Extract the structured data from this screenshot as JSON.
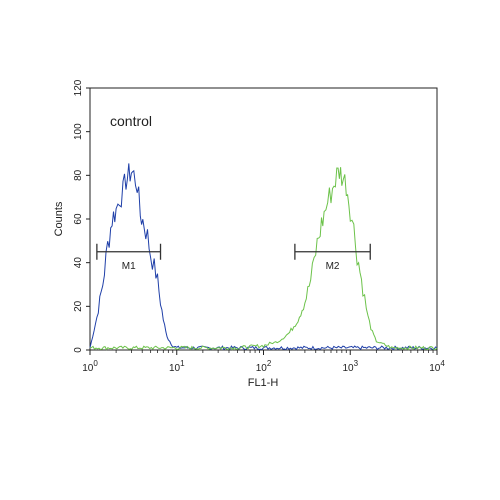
{
  "chart_data": {
    "type": "line",
    "xlabel": "FL1-H",
    "ylabel": "Counts",
    "x_scale": "log",
    "xlim": [
      1,
      10000
    ],
    "ylim": [
      0,
      120
    ],
    "x_ticks": [
      {
        "value": 1,
        "base": "10",
        "exp": "0"
      },
      {
        "value": 10,
        "base": "10",
        "exp": "1"
      },
      {
        "value": 100,
        "base": "10",
        "exp": "2"
      },
      {
        "value": 1000,
        "base": "10",
        "exp": "3"
      },
      {
        "value": 10000,
        "base": "10",
        "exp": "4"
      }
    ],
    "y_ticks": [
      0,
      20,
      40,
      60,
      80,
      100,
      120
    ],
    "annotation": "control",
    "markers": [
      {
        "label": "M1",
        "x_start": 1.2,
        "x_end": 6.5,
        "y": 45
      },
      {
        "label": "M2",
        "x_start": 230,
        "x_end": 1700,
        "y": 45
      }
    ],
    "series": [
      {
        "color": "#1f3fa8",
        "x": [
          1,
          1.2,
          1.4,
          1.6,
          1.8,
          2.0,
          2.2,
          2.4,
          2.6,
          2.8,
          3.0,
          3.2,
          3.5,
          3.8,
          4.2,
          4.6,
          5.0,
          5.5,
          6.0,
          6.5,
          7.0,
          7.5,
          8.0,
          9.0,
          10,
          20,
          50,
          100,
          1000,
          10000
        ],
        "y": [
          1,
          15,
          30,
          48,
          60,
          64,
          70,
          72,
          78,
          80,
          82,
          80,
          76,
          62,
          58,
          52,
          44,
          38,
          32,
          22,
          14,
          8,
          5,
          2,
          1,
          1,
          1,
          1,
          1,
          1
        ]
      },
      {
        "color": "#6cc24a",
        "x": [
          1,
          10,
          50,
          100,
          150,
          200,
          250,
          300,
          350,
          400,
          450,
          500,
          550,
          600,
          650,
          700,
          750,
          800,
          900,
          1000,
          1100,
          1200,
          1400,
          1600,
          1800,
          2000,
          3000,
          10000
        ],
        "y": [
          1,
          1,
          1,
          2,
          4,
          8,
          14,
          22,
          32,
          45,
          55,
          62,
          68,
          72,
          76,
          80,
          82,
          80,
          76,
          65,
          55,
          44,
          28,
          15,
          8,
          4,
          1,
          1
        ]
      }
    ]
  }
}
